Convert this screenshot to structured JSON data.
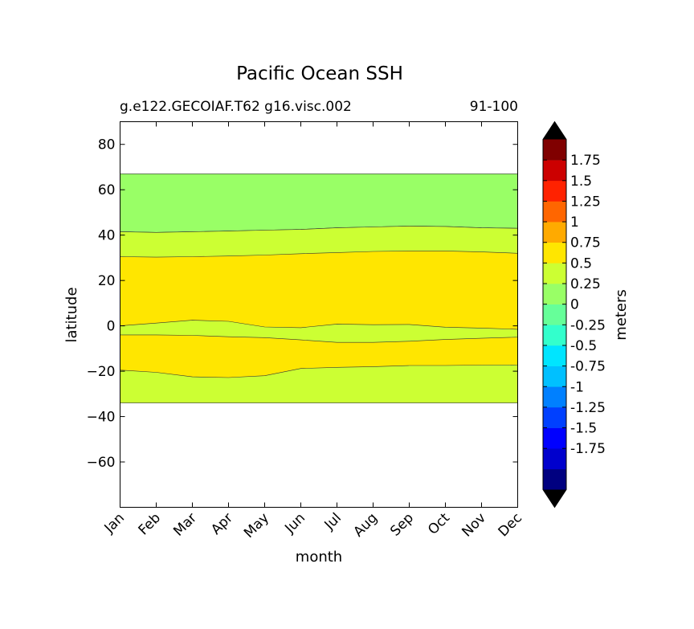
{
  "chart_data": {
    "type": "heatmap",
    "title": "Pacific Ocean SSH",
    "subtitle_left": "g.e122.GECOIAF.T62 g16.visc.002",
    "subtitle_right": "91-100",
    "xlabel": "month",
    "ylabel": "latitude",
    "categories": [
      "Jan",
      "Feb",
      "Mar",
      "Apr",
      "May",
      "Jun",
      "Jul",
      "Aug",
      "Sep",
      "Oct",
      "Nov",
      "Dec"
    ],
    "ylim": [
      -80,
      90
    ],
    "yticks": [
      80,
      60,
      40,
      20,
      0,
      -20,
      -40,
      -60
    ],
    "ytick_labels": [
      "80",
      "60",
      "40",
      "20",
      "0",
      "−20",
      "−40",
      "−60"
    ],
    "data_extent": [
      -34,
      67
    ],
    "bands": [
      {
        "range": "0 to 0.25",
        "color": "#99ff66",
        "upper": [
          67,
          67,
          67,
          67,
          67,
          67,
          67,
          67,
          67,
          67,
          67,
          67
        ],
        "lower": [
          41.5,
          41.2,
          41.5,
          41.8,
          42.2,
          42.5,
          43.2,
          43.6,
          44.0,
          43.8,
          43.2,
          43.0
        ]
      },
      {
        "range": "0.25 to 0.5",
        "color": "#ccff33",
        "upper": [
          41.5,
          41.2,
          41.5,
          41.8,
          42.2,
          42.5,
          43.2,
          43.6,
          44.0,
          43.8,
          43.2,
          43.0
        ],
        "lower": [
          -34,
          -34,
          -34,
          -34,
          -34,
          -34,
          -34,
          -34,
          -34,
          -34,
          -34,
          -34
        ]
      },
      {
        "range": "0.5 to 0.75",
        "color": "#ffe600",
        "upper": [
          30.5,
          30.3,
          30.5,
          30.8,
          31.2,
          31.8,
          32.3,
          32.8,
          33.0,
          33.0,
          32.6,
          32.0
        ],
        "lower": [
          -19.5,
          -20.5,
          -22.5,
          -22.8,
          -22.0,
          -18.8,
          -18.3,
          -18.0,
          -17.5,
          -17.5,
          -17.3,
          -17.2
        ]
      }
    ],
    "inner_band": {
      "range": "0.25 to 0.5",
      "color": "#ccff33",
      "upper": [
        0.0,
        1.2,
        2.5,
        2.0,
        -0.5,
        -0.8,
        0.8,
        0.5,
        0.6,
        -0.6,
        -1.0,
        -1.5
      ],
      "lower": [
        -4.0,
        -4.0,
        -4.2,
        -4.8,
        -5.2,
        -6.2,
        -7.3,
        -7.3,
        -6.8,
        -6.0,
        -5.5,
        -5.0
      ]
    },
    "background_band": {
      "range": "-0.25 to 0",
      "color": "#66ff99"
    },
    "colorbar": {
      "label": "meters",
      "levels": [
        -2,
        -1.75,
        -1.5,
        -1.25,
        -1,
        -0.75,
        -0.5,
        -0.25,
        0,
        0.25,
        0.5,
        0.75,
        1,
        1.25,
        1.5,
        1.75,
        2
      ],
      "colors": [
        "#000080",
        "#0000cd",
        "#0000ff",
        "#0040ff",
        "#0080ff",
        "#00c0ff",
        "#00e5ff",
        "#33ffcc",
        "#66ff99",
        "#99ff66",
        "#ccff33",
        "#ffe600",
        "#ffaa00",
        "#ff6600",
        "#ff2200",
        "#cc0000",
        "#800000"
      ],
      "over_color": "#000000",
      "under_color": "#000000",
      "tick_labels": [
        "1.75",
        "1.5",
        "1.25",
        "1",
        "0.75",
        "0.5",
        "0.25",
        "0",
        "-0.25",
        "-0.5",
        "-0.75",
        "-1",
        "-1.25",
        "-1.5",
        "-1.75"
      ]
    }
  }
}
